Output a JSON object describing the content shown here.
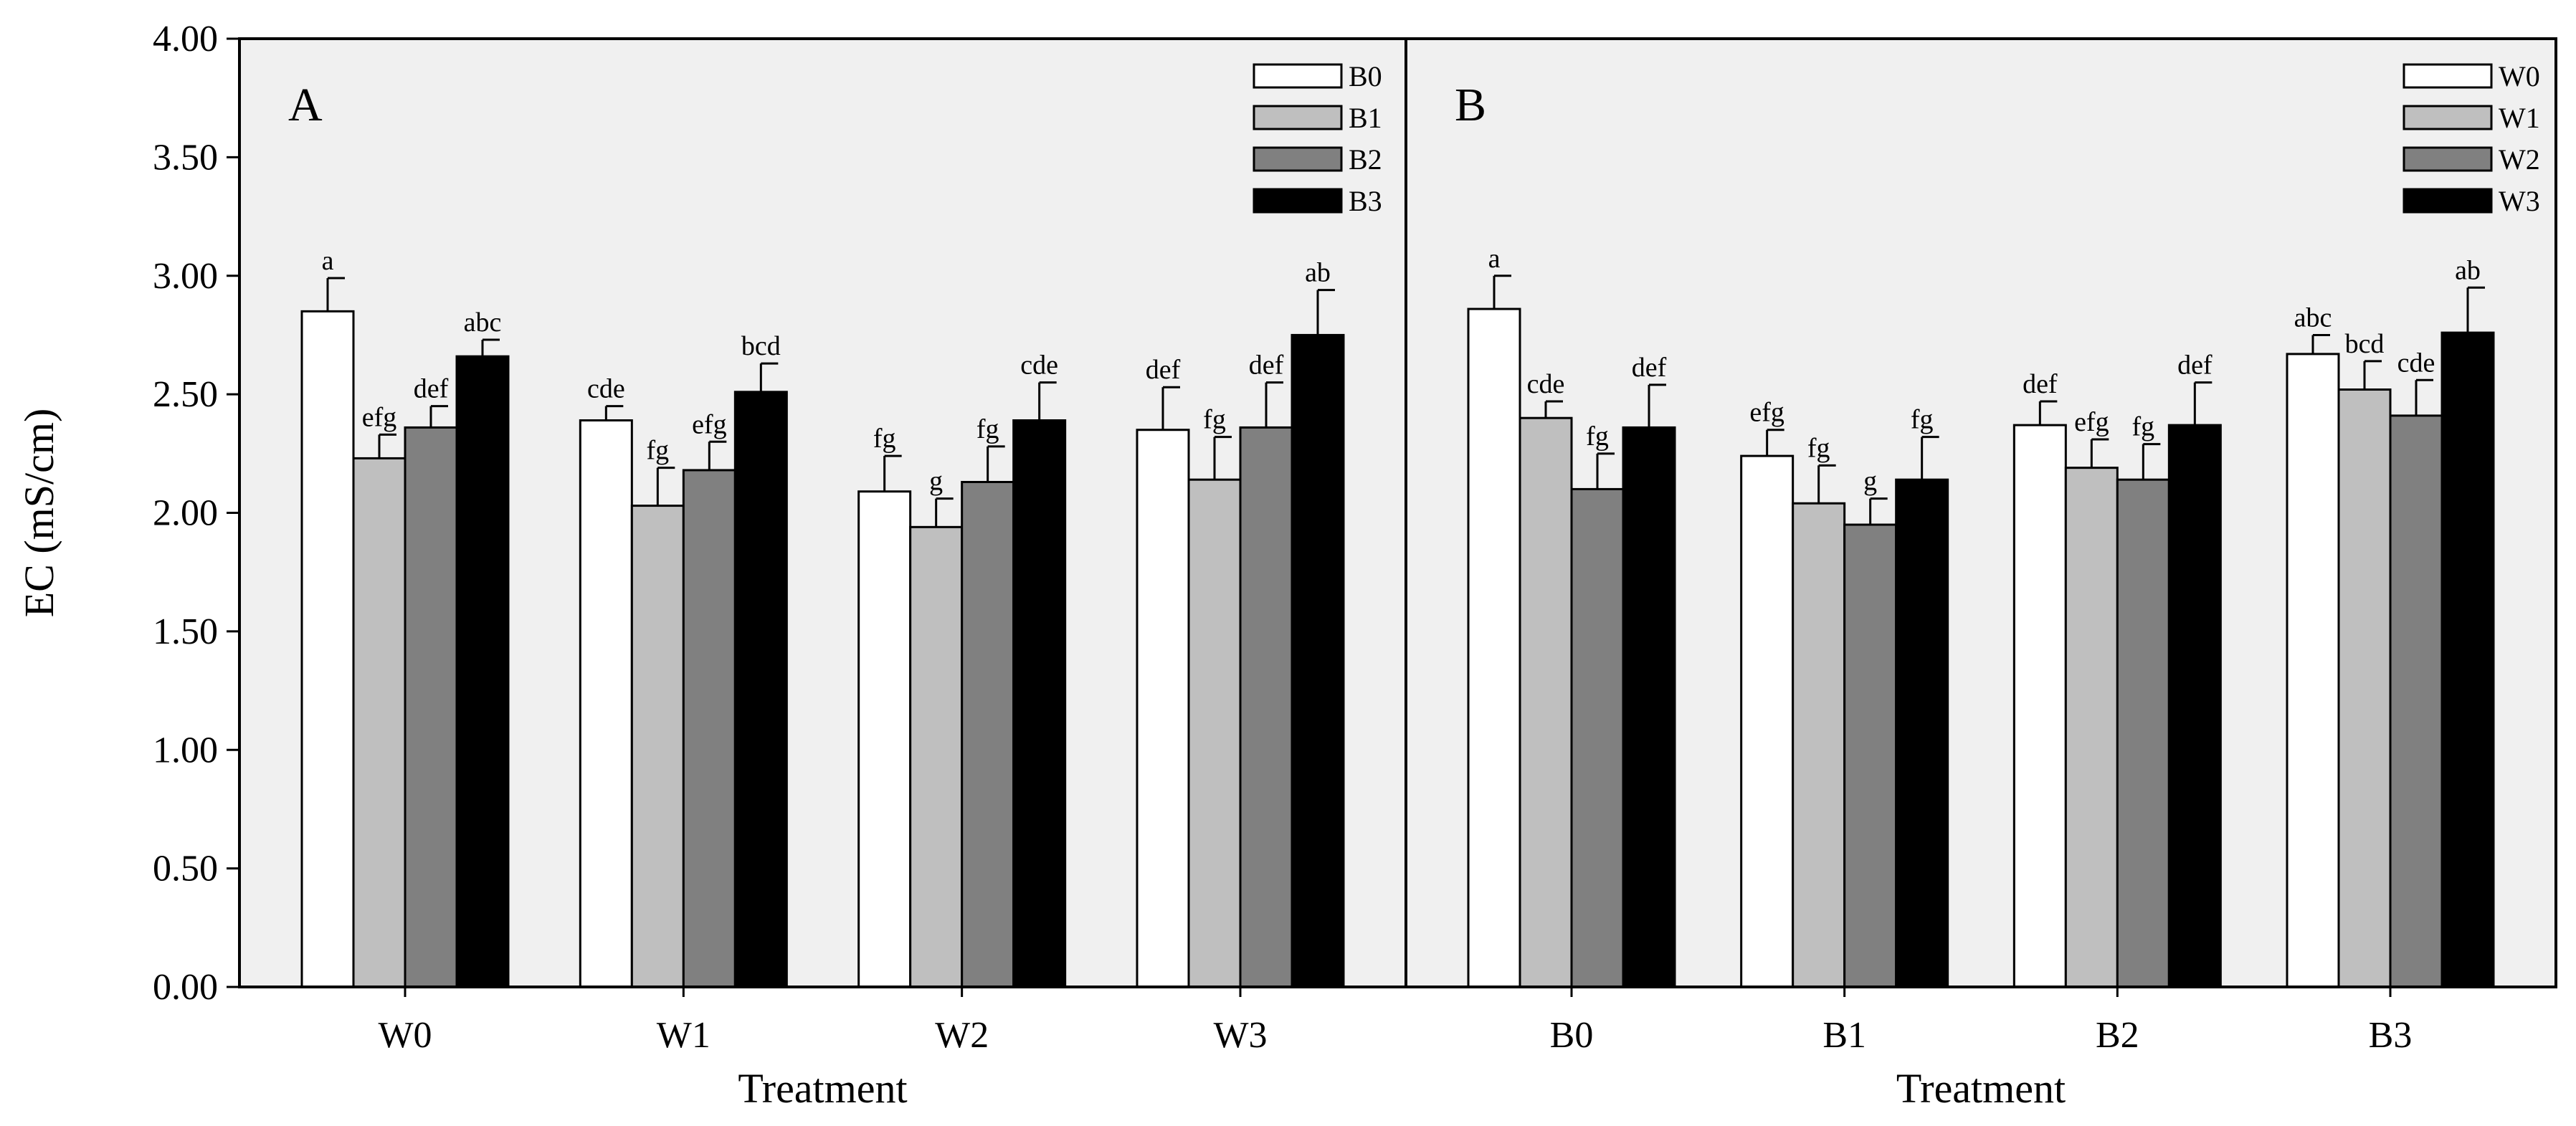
{
  "chart_data": [
    {
      "type": "bar",
      "panel_label": "A",
      "xlabel": "Treatment",
      "ylabel": "EC (mS/cm)",
      "ylim": [
        0,
        4
      ],
      "yticks": [
        "0.00",
        "0.50",
        "1.00",
        "1.50",
        "2.00",
        "2.50",
        "3.00",
        "3.50",
        "4.00"
      ],
      "categories": [
        "W0",
        "W1",
        "W2",
        "W3"
      ],
      "legend_position": "top-right",
      "series": [
        {
          "name": "B0",
          "color": "#ffffff",
          "values": [
            2.85,
            2.39,
            2.09,
            2.35
          ],
          "errors": [
            0.14,
            0.06,
            0.15,
            0.18
          ],
          "labels": [
            "a",
            "cde",
            "fg",
            "def"
          ]
        },
        {
          "name": "B1",
          "color": "#bfbfbf",
          "values": [
            2.23,
            2.03,
            1.94,
            2.14
          ],
          "errors": [
            0.1,
            0.16,
            0.12,
            0.18
          ],
          "labels": [
            "efg",
            "fg",
            "g",
            "fg"
          ]
        },
        {
          "name": "B2",
          "color": "#808080",
          "values": [
            2.36,
            2.18,
            2.13,
            2.36
          ],
          "errors": [
            0.09,
            0.12,
            0.15,
            0.19
          ],
          "labels": [
            "def",
            "efg",
            "fg",
            "def"
          ]
        },
        {
          "name": "B3",
          "color": "#000000",
          "values": [
            2.66,
            2.51,
            2.39,
            2.75
          ],
          "errors": [
            0.07,
            0.12,
            0.16,
            0.19
          ],
          "labels": [
            "abc",
            "bcd",
            "cde",
            "ab"
          ]
        }
      ]
    },
    {
      "type": "bar",
      "panel_label": "B",
      "xlabel": "Treatment",
      "ylabel": "",
      "ylim": [
        0,
        4
      ],
      "categories": [
        "B0",
        "B1",
        "B2",
        "B3"
      ],
      "legend_position": "top-right",
      "series": [
        {
          "name": "W0",
          "color": "#ffffff",
          "values": [
            2.86,
            2.24,
            2.37,
            2.67
          ],
          "errors": [
            0.14,
            0.11,
            0.1,
            0.08
          ],
          "labels": [
            "a",
            "efg",
            "def",
            "abc"
          ]
        },
        {
          "name": "W1",
          "color": "#bfbfbf",
          "values": [
            2.4,
            2.04,
            2.19,
            2.52
          ],
          "errors": [
            0.07,
            0.16,
            0.12,
            0.12
          ],
          "labels": [
            "cde",
            "fg",
            "efg",
            "bcd"
          ]
        },
        {
          "name": "W2",
          "color": "#808080",
          "values": [
            2.1,
            1.95,
            2.14,
            2.41
          ],
          "errors": [
            0.15,
            0.11,
            0.15,
            0.15
          ],
          "labels": [
            "fg",
            "g",
            "fg",
            "cde"
          ]
        },
        {
          "name": "W3",
          "color": "#000000",
          "values": [
            2.36,
            2.14,
            2.37,
            2.76
          ],
          "errors": [
            0.18,
            0.18,
            0.18,
            0.19
          ],
          "labels": [
            "def",
            "fg",
            "def",
            "ab"
          ]
        }
      ]
    }
  ]
}
